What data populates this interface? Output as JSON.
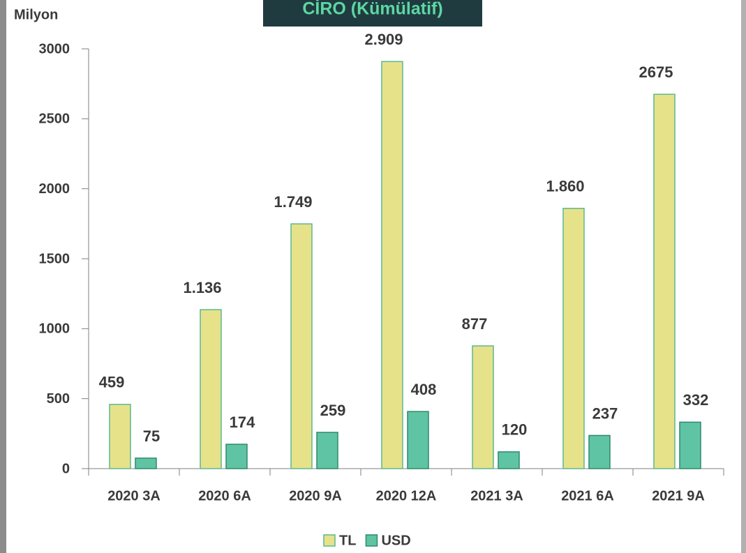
{
  "chart_data": {
    "type": "bar",
    "title": "CİRO (Kümülatif)",
    "y_label": "Milyon",
    "categories": [
      "2020 3A",
      "2020 6A",
      "2020 9A",
      "2020 12A",
      "2021 3A",
      "2021 6A",
      "2021 9A"
    ],
    "series": [
      {
        "name": "TL",
        "color": "#e6e28a",
        "values": [
          459,
          1136,
          1749,
          2909,
          877,
          1860,
          2675
        ],
        "value_labels": [
          "459",
          "1.136",
          "1.749",
          "2.909",
          "877",
          "1.860",
          "2675"
        ]
      },
      {
        "name": "USD",
        "color": "#5fc4a4",
        "values": [
          75,
          174,
          259,
          408,
          120,
          237,
          332
        ]
      }
    ],
    "ylim": [
      0,
      3000
    ],
    "yticks": [
      0,
      500,
      1000,
      1500,
      2000,
      2500,
      3000
    ],
    "grid": false
  }
}
